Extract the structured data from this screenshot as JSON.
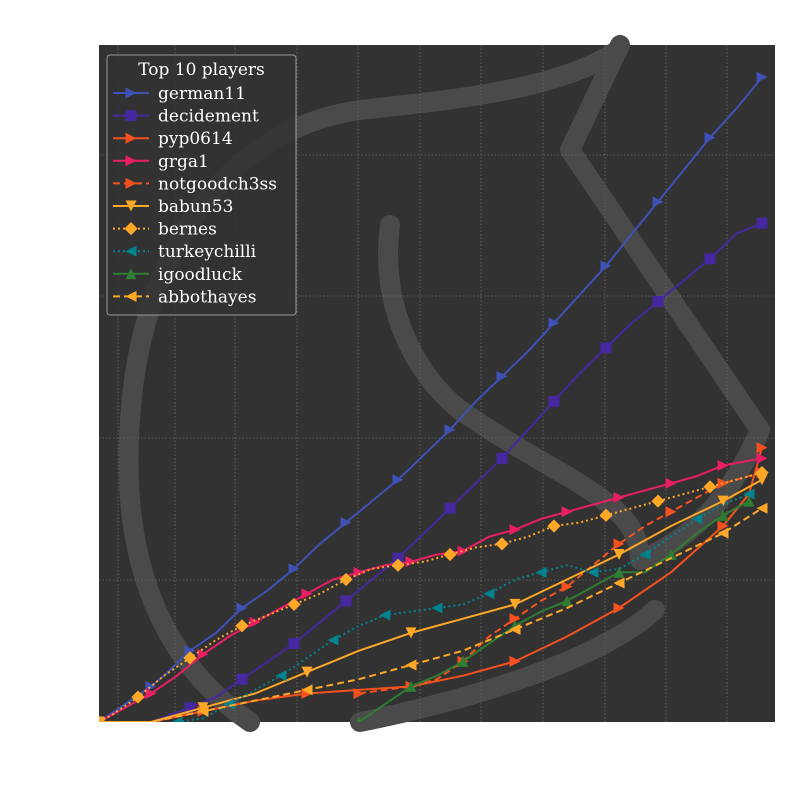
{
  "chart_data": {
    "type": "line",
    "title": "",
    "xlabel": "",
    "ylabel": "",
    "grid": true,
    "legend": {
      "title": "Top 10 players",
      "placement": "top-left"
    },
    "x_ticks": [],
    "y_ticks": [],
    "xlim": [
      0,
      52
    ],
    "ylim": [
      0,
      190
    ],
    "background_color": "#323232",
    "watermark": "large light-grey lichess knight outline behind the plot",
    "series": [
      {
        "name": "german11",
        "color": "#3f51b5",
        "linestyle": "solid",
        "marker": "triangle-right",
        "x": [
          0,
          2,
          4,
          5,
          7,
          9,
          11,
          13,
          15,
          17,
          19,
          21,
          23,
          25,
          27,
          29,
          31,
          33,
          35,
          37,
          39,
          41,
          43,
          45,
          47,
          49,
          51
        ],
        "y": [
          0,
          5,
          10,
          13,
          20,
          25,
          32,
          37,
          43,
          50,
          56,
          62,
          68,
          75,
          82,
          90,
          97,
          104,
          112,
          120,
          128,
          137,
          146,
          155,
          164,
          172,
          181
        ]
      },
      {
        "name": "decidement",
        "color": "#4527a0",
        "linestyle": "solid",
        "marker": "square",
        "x": [
          0,
          4,
          7,
          9,
          11,
          13,
          15,
          17,
          19,
          21,
          23,
          25,
          27,
          29,
          31,
          33,
          35,
          37,
          39,
          41,
          43,
          45,
          47,
          49,
          51
        ],
        "y": [
          0,
          0,
          4,
          7,
          12,
          17,
          22,
          28,
          34,
          40,
          46,
          53,
          60,
          67,
          74,
          82,
          90,
          98,
          105,
          112,
          118,
          124,
          130,
          137,
          140
        ]
      },
      {
        "name": "pyp0614",
        "color": "#f4511e",
        "linestyle": "solid",
        "marker": "triangle-right",
        "x": [
          0,
          4,
          8,
          12,
          16,
          20,
          24,
          28,
          32,
          36,
          40,
          44,
          48,
          50,
          51
        ],
        "y": [
          0,
          0,
          3,
          6,
          8,
          9,
          10,
          13,
          17,
          24,
          32,
          42,
          55,
          64,
          77
        ]
      },
      {
        "name": "grga1",
        "color": "#e91e63",
        "linestyle": "solid",
        "marker": "triangle-right",
        "x": [
          0,
          2,
          4,
          6,
          8,
          10,
          12,
          14,
          16,
          18,
          20,
          22,
          24,
          26,
          28,
          30,
          32,
          34,
          36,
          38,
          40,
          42,
          44,
          46,
          48,
          51
        ],
        "y": [
          0,
          4,
          8,
          13,
          19,
          24,
          28,
          32,
          36,
          40,
          42,
          44,
          45,
          47,
          48,
          52,
          54,
          57,
          59,
          61,
          63,
          65,
          67,
          69,
          72,
          74
        ]
      },
      {
        "name": "notgoodch3ss",
        "color": "#f4511e",
        "linestyle": "dashed",
        "marker": "triangle-right",
        "x": [
          20,
          22,
          24,
          26,
          28,
          30,
          32,
          34,
          36,
          38,
          40,
          42,
          44,
          46,
          48,
          51
        ],
        "y": [
          8,
          9,
          10,
          12,
          17,
          24,
          29,
          34,
          38,
          44,
          50,
          55,
          59,
          63,
          67,
          70
        ]
      },
      {
        "name": "babun53",
        "color": "#ffa726",
        "linestyle": "solid",
        "marker": "triangle-down",
        "x": [
          0,
          4,
          8,
          12,
          16,
          20,
          24,
          28,
          32,
          36,
          40,
          44,
          48,
          51
        ],
        "y": [
          0,
          0,
          4,
          8,
          14,
          20,
          25,
          29,
          33,
          40,
          47,
          55,
          62,
          68
        ]
      },
      {
        "name": "bernes",
        "color": "#ffa726",
        "linestyle": "dotted",
        "marker": "diamond",
        "x": [
          0,
          1,
          3,
          5,
          7,
          9,
          11,
          13,
          15,
          17,
          19,
          21,
          23,
          25,
          27,
          29,
          31,
          33,
          35,
          37,
          39,
          41,
          43,
          45,
          47,
          49,
          51
        ],
        "y": [
          0,
          2,
          7,
          13,
          18,
          23,
          27,
          30,
          33,
          36,
          40,
          43,
          44,
          45,
          47,
          49,
          50,
          52,
          55,
          56,
          58,
          60,
          62,
          64,
          66,
          68,
          70
        ]
      },
      {
        "name": "turkeychilli",
        "color": "#00838f",
        "linestyle": "dotted",
        "marker": "triangle-left",
        "x": [
          6,
          8,
          10,
          12,
          14,
          16,
          18,
          20,
          22,
          24,
          26,
          28,
          30,
          32,
          34,
          36,
          38,
          40,
          42,
          44,
          46,
          48,
          50
        ],
        "y": [
          0,
          1,
          5,
          9,
          13,
          18,
          23,
          27,
          30,
          31,
          32,
          33,
          36,
          40,
          42,
          44,
          42,
          43,
          47,
          52,
          57,
          61,
          64
        ]
      },
      {
        "name": "igoodluck",
        "color": "#2e7d32",
        "linestyle": "solid",
        "marker": "triangle-up",
        "x": [
          20,
          22,
          24,
          26,
          28,
          30,
          32,
          34,
          36,
          38,
          40,
          42,
          44,
          46,
          48,
          50
        ],
        "y": [
          0,
          5,
          10,
          13,
          17,
          22,
          27,
          31,
          34,
          38,
          42,
          42,
          47,
          53,
          58,
          62
        ]
      },
      {
        "name": "abbothayes",
        "color": "#ffa726",
        "linestyle": "dashed",
        "marker": "triangle-left",
        "x": [
          0,
          4,
          8,
          12,
          16,
          20,
          24,
          28,
          32,
          36,
          40,
          44,
          48,
          51
        ],
        "y": [
          0,
          0,
          3,
          6,
          9,
          12,
          16,
          20,
          26,
          32,
          39,
          46,
          53,
          60
        ]
      }
    ]
  }
}
